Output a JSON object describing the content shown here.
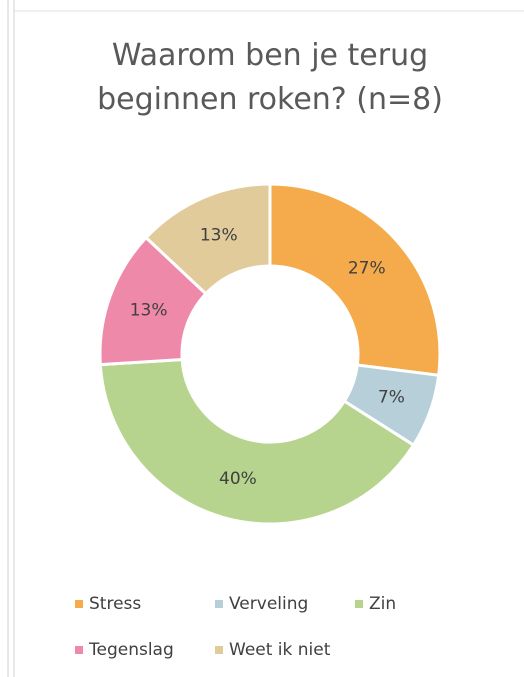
{
  "chart_data": {
    "type": "donut",
    "title": "Waarom ben je terug beginnen roken? (n=8)",
    "categories": [
      "Stress",
      "Verveling",
      "Zin",
      "Tegenslag",
      "Weet ik niet"
    ],
    "values": [
      27,
      7,
      40,
      13,
      13
    ],
    "value_labels": [
      "27%",
      "7%",
      "40%",
      "13%",
      "13%"
    ],
    "colors": [
      "#f5ab4b",
      "#b7cfd9",
      "#b7d48f",
      "#ee89a9",
      "#e2cb9b"
    ],
    "legend": "bottom"
  }
}
